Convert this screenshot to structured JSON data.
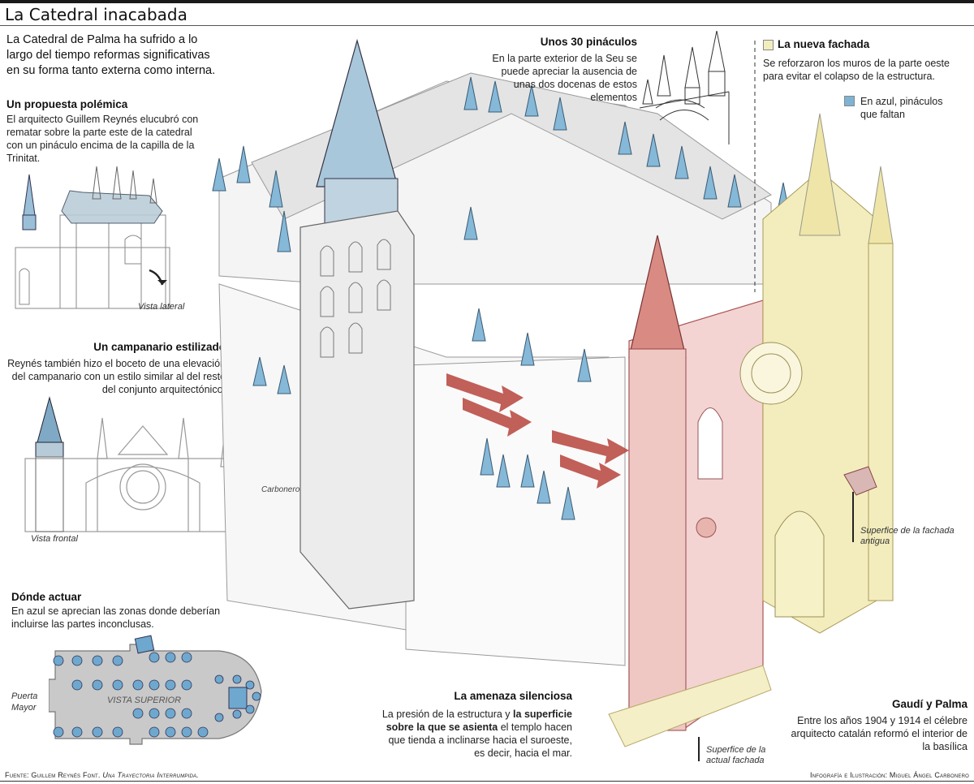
{
  "header": {
    "title": "La Catedral inacabada",
    "intro": "La Catedral de Palma ha sufrido a lo largo del tiempo reformas significativas en su forma tanto externa como interna."
  },
  "sections": {
    "propuesta": {
      "title": "Un propuesta polémica",
      "text": "El arquitecto Guillem Reynés elucubró con rematar sobre la parte este de la catedral con un pináculo encima de la capilla de la Trinitat.",
      "caption": "Vista lateral"
    },
    "campanario": {
      "title": "Un campanario estilizado",
      "text": "Reynés también hizo el boceto de una elevación del campanario con un estilo similar al del resto del conjunto arquitectónico.",
      "caption": "Vista frontal"
    },
    "donde": {
      "title": "Dónde actuar",
      "text": "En azul se aprecian las zonas donde deberían incluirse las partes inconclusas.",
      "plan_label": "VISTA SUPERIOR",
      "door_label_1": "Puerta",
      "door_label_2": "Mayor"
    },
    "pinaculos": {
      "title": "Unos 30 pináculos",
      "text": "En la parte exterior de la Seu se puede apreciar la ausencia de unas dos docenas de estos elementos"
    },
    "fachada": {
      "title": "La nueva fachada",
      "text": "Se reforzaron los muros de la parte oeste para evitar el colapso de la estructura.",
      "legend": "En azul, pináculos que faltan"
    },
    "amenaza": {
      "title": "La amenaza silenciosa",
      "text_a": "La presión de la estructura y",
      "text_b": "la superficie sobre la que se asienta",
      "text_c": "el templo hacen que tienda a inclinarse hacia el suroeste, es decir, hacia el mar."
    },
    "gaudi": {
      "title": "Gaudí y Palma",
      "text": "Entre los años 1904 y 1914 el célebre arquitecto catalán reformó el interior de la basílica"
    }
  },
  "callouts": {
    "antigua": "Superfice de la fachada antigua",
    "actual": "Superfice de la actual fachada"
  },
  "signature": "Carbonero",
  "footer": {
    "source_prefix": "Fuente: Guillem Reynés Font.",
    "source_work": "Una Trayectoria Interrumpida.",
    "credit": "Infografía e Ilustración: Miguel Ángel Carbonero"
  },
  "colors": {
    "blue": "#7fb3d3",
    "red": "#c9574f",
    "yellow": "#f3edbe",
    "gray": "#cfcfcf"
  }
}
